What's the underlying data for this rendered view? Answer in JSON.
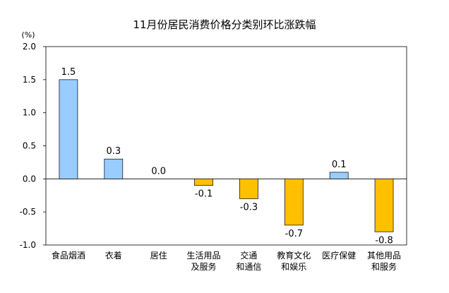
{
  "chart_data": {
    "type": "bar",
    "title": "11月份居民消费价格分类别环比涨跌幅",
    "unit_label": "(%)",
    "xlabel": "",
    "ylabel": "",
    "ylim": [
      -1.0,
      2.0
    ],
    "y_ticks": [
      "2.0",
      "1.5",
      "1.0",
      "0.5",
      "0.0",
      "-0.5",
      "-1.0"
    ],
    "grid": false,
    "legend": "none",
    "categories": [
      [
        "食品烟酒"
      ],
      [
        "衣着"
      ],
      [
        "居住"
      ],
      [
        "生活用品",
        "及服务"
      ],
      [
        "交通",
        "和通信"
      ],
      [
        "教育文化",
        "和娱乐"
      ],
      [
        "医疗保健"
      ],
      [
        "其他用品",
        "和服务"
      ]
    ],
    "values": [
      1.5,
      0.3,
      0.0,
      -0.1,
      -0.3,
      -0.7,
      0.1,
      -0.8
    ],
    "value_labels": [
      "1.5",
      "0.3",
      "0.0",
      "-0.1",
      "-0.3",
      "-0.7",
      "0.1",
      "-0.8"
    ],
    "colors": {
      "positive": "#99CCFF",
      "negative": "#FFC000",
      "bar_stroke": "#000000",
      "axis": "#000000"
    }
  }
}
